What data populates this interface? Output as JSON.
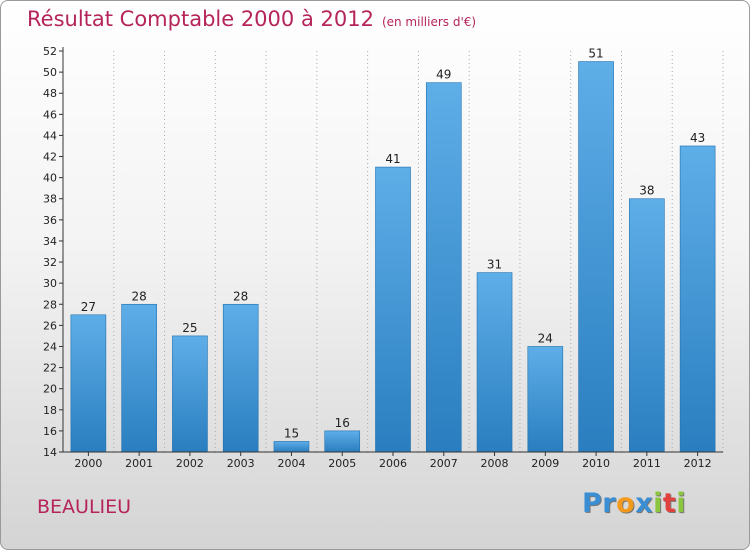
{
  "header": {
    "title": "Résultat Comptable 2000 à 2012",
    "subtitle": "(en milliers d'€)"
  },
  "footer": {
    "town": "BEAULIEU",
    "logo": [
      {
        "ch": "P",
        "color": "#3a8fd4"
      },
      {
        "ch": "r",
        "color": "#3a8fd4"
      },
      {
        "ch": "o",
        "color": "#f29a1e"
      },
      {
        "ch": "x",
        "color": "#3a8fd4"
      },
      {
        "ch": "i",
        "color": "#8cc63f"
      },
      {
        "ch": "t",
        "color": "#e2403c"
      },
      {
        "ch": "i",
        "color": "#8cc63f"
      }
    ]
  },
  "colors": {
    "bar_light": "#5eaee8",
    "bar_dark": "#2a7ebf",
    "title": "#b5245a"
  },
  "chart_data": {
    "type": "bar",
    "title": "Résultat Comptable 2000 à 2012",
    "subtitle": "(en milliers d'€)",
    "categories": [
      "2000",
      "2001",
      "2002",
      "2003",
      "2004",
      "2005",
      "2006",
      "2007",
      "2008",
      "2009",
      "2010",
      "2011",
      "2012"
    ],
    "values": [
      27,
      28,
      25,
      28,
      15,
      16,
      41,
      49,
      31,
      24,
      51,
      38,
      43
    ],
    "data_labels": [
      "27",
      "28",
      "25",
      "28",
      "15",
      "16",
      "41",
      "49",
      "31",
      "24",
      "51",
      "38",
      "43"
    ],
    "ylim": [
      14,
      52
    ],
    "yticks": [
      "14",
      "16",
      "18",
      "20",
      "22",
      "24",
      "26",
      "28",
      "30",
      "32",
      "34",
      "36",
      "38",
      "40",
      "42",
      "44",
      "46",
      "48",
      "50",
      "52"
    ],
    "grid": "vertical-dotted"
  }
}
